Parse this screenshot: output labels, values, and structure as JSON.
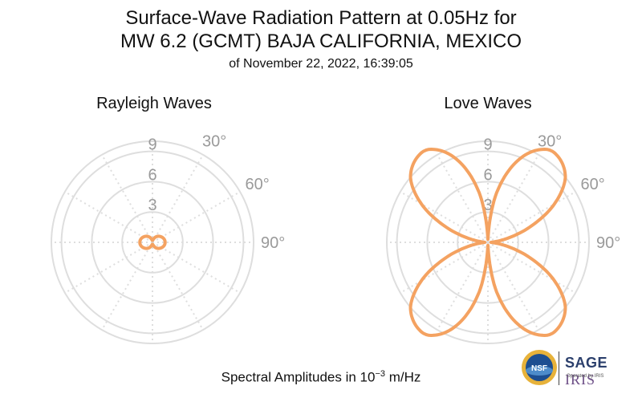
{
  "header": {
    "title_line1": "Surface-Wave Radiation Pattern at 0.05Hz for",
    "title_line2": "MW 6.2 (GCMT) BAJA CALIFORNIA, MEXICO",
    "subtitle": "of November 22, 2022, 16:39:05"
  },
  "footer": {
    "label_prefix": "Spectral Amplitudes in 10",
    "exponent": "−3",
    "unit": " m/Hz"
  },
  "logos": {
    "nsf": "NSF",
    "sage": "SAGE",
    "iris": "IRIS",
    "operated_by": "Operated by IRIS"
  },
  "colors": {
    "pattern": "#f4a261",
    "grid": "#dedede",
    "tick_label": "#9a9a9a"
  },
  "chart_data": [
    {
      "type": "polar",
      "title": "Rayleigh Waves",
      "radial_ticks": [
        3,
        6,
        9
      ],
      "radial_tick_labels": [
        "3",
        "6",
        "9"
      ],
      "rmax": 10,
      "angle_tick_labels": [
        "30°",
        "60°",
        "90°"
      ],
      "angle_ticks_deg": [
        30,
        60,
        90
      ],
      "grid": true,
      "series": [
        {
          "description_points": "azimuth (deg) vs amplitude",
          "azimuth_deg": [
            0,
            15,
            30,
            45,
            60,
            75,
            90,
            105,
            120,
            135,
            150,
            165,
            180,
            195,
            210,
            225,
            240,
            255,
            270,
            285,
            300,
            315,
            330,
            345,
            360
          ],
          "amplitude": [
            0.2,
            0.3,
            0.6,
            0.85,
            1.05,
            1.2,
            1.25,
            1.2,
            1.05,
            0.85,
            0.6,
            0.3,
            0.2,
            0.3,
            0.6,
            0.85,
            1.05,
            1.2,
            1.25,
            1.2,
            1.05,
            0.85,
            0.6,
            0.3,
            0.2
          ]
        }
      ]
    },
    {
      "type": "polar",
      "title": "Love Waves",
      "radial_ticks": [
        3,
        6,
        9
      ],
      "radial_tick_labels": [
        "3",
        "6",
        "9"
      ],
      "rmax": 10,
      "angle_tick_labels": [
        "30°",
        "60°",
        "90°"
      ],
      "angle_ticks_deg": [
        30,
        60,
        90
      ],
      "grid": true,
      "series": [
        {
          "description_points": "four-lobed pattern, lobes near azimuths 38°, 142°, 218°, 322°",
          "azimuth_deg": [
            0,
            10,
            20,
            30,
            38,
            50,
            60,
            70,
            80,
            90,
            100,
            110,
            120,
            130,
            142,
            150,
            160,
            170,
            180,
            190,
            200,
            210,
            218,
            230,
            240,
            250,
            260,
            270,
            280,
            290,
            300,
            310,
            322,
            330,
            340,
            350,
            360
          ],
          "amplitude": [
            0.3,
            5.0,
            8.6,
            10.6,
            11.0,
            10.0,
            7.6,
            4.4,
            1.6,
            0.3,
            1.6,
            4.4,
            7.6,
            10.0,
            11.0,
            10.6,
            8.6,
            5.0,
            0.3,
            5.0,
            8.6,
            10.6,
            11.0,
            10.0,
            7.6,
            4.4,
            1.6,
            0.3,
            1.6,
            4.4,
            7.6,
            10.0,
            11.0,
            10.6,
            8.6,
            5.0,
            0.3
          ]
        }
      ]
    }
  ]
}
